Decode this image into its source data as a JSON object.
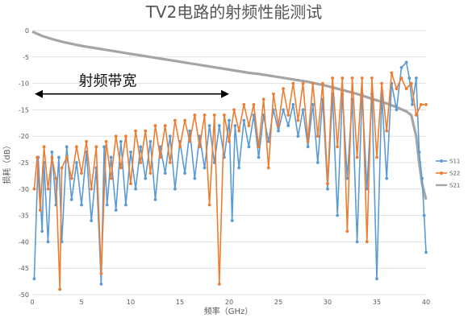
{
  "chart_data": {
    "type": "line",
    "title": "TV2电路的射频性能测试",
    "xlabel": "频率（GHz）",
    "ylabel": "损耗（dB）",
    "xlim": [
      0,
      40
    ],
    "ylim": [
      -50,
      0
    ],
    "xticks": [
      0,
      5,
      10,
      15,
      20,
      25,
      30,
      35,
      40
    ],
    "yticks": [
      0,
      -5,
      -10,
      -15,
      -20,
      -25,
      -30,
      -35,
      -40,
      -45,
      -50
    ],
    "grid": "horizontal",
    "legend_position": "right",
    "annotation": {
      "text": "射频带宽",
      "x_range": [
        0,
        20
      ],
      "y": -12
    },
    "series": [
      {
        "name": "S11",
        "color": "#5B9BD5",
        "marker": true,
        "x": [
          0.2,
          0.6,
          1.0,
          1.2,
          1.6,
          2.0,
          2.4,
          2.7,
          3.0,
          3.5,
          4.0,
          4.5,
          5.0,
          5.5,
          6.0,
          6.5,
          7.0,
          7.3,
          7.6,
          8.0,
          8.5,
          9.0,
          9.5,
          10.0,
          10.5,
          11.0,
          11.5,
          12.0,
          12.5,
          13.0,
          13.5,
          14.0,
          14.5,
          15.0,
          15.5,
          16.0,
          16.5,
          17.0,
          17.5,
          18.0,
          18.5,
          19.0,
          19.5,
          20.0,
          20.3,
          20.6,
          21.0,
          21.5,
          22.0,
          22.5,
          23.0,
          23.5,
          24.0,
          24.5,
          25.0,
          25.5,
          26.0,
          26.5,
          27.0,
          27.5,
          28.0,
          28.5,
          29.0,
          29.5,
          30.0,
          30.5,
          31.0,
          31.5,
          32.0,
          32.5,
          33.0,
          33.5,
          34.0,
          34.5,
          35.0,
          35.5,
          36.0,
          36.5,
          37.0,
          37.5,
          38.0,
          38.3,
          38.6,
          39.0,
          39.3,
          39.6,
          39.8,
          40.0
        ],
        "y": [
          -47,
          -24,
          -38,
          -25,
          -40,
          -23,
          -33,
          -24,
          -40,
          -22,
          -32,
          -25,
          -33,
          -23,
          -36,
          -26,
          -48,
          -22,
          -33,
          -24,
          -34,
          -21,
          -33,
          -23,
          -30,
          -22,
          -28,
          -21,
          -32,
          -22,
          -27,
          -20,
          -30,
          -21,
          -27,
          -19,
          -28,
          -20,
          -26,
          -18,
          -25,
          -18,
          -24,
          -17,
          -36,
          -18,
          -26,
          -17,
          -22,
          -16,
          -24,
          -16,
          -21,
          -15,
          -19,
          -15,
          -18,
          -14,
          -20,
          -15,
          -22,
          -14,
          -25,
          -13,
          -30,
          -12,
          -35,
          -12,
          -28,
          -13,
          -40,
          -12,
          -30,
          -12,
          -47,
          -12,
          -28,
          -10,
          -15,
          -7,
          -6,
          -9,
          -14,
          -9,
          -23,
          -28,
          -35,
          -42
        ]
      },
      {
        "name": "S22",
        "color": "#ED7D31",
        "marker": true,
        "x": [
          0.2,
          0.5,
          0.8,
          1.2,
          1.6,
          2.0,
          2.4,
          2.8,
          3.0,
          3.5,
          4.0,
          4.5,
          5.0,
          5.5,
          6.0,
          6.5,
          7.0,
          7.5,
          8.0,
          8.5,
          9.0,
          9.5,
          10.0,
          10.5,
          11.0,
          11.5,
          12.0,
          12.5,
          13.0,
          13.5,
          14.0,
          14.5,
          15.0,
          15.5,
          16.0,
          16.5,
          17.0,
          17.5,
          18.0,
          18.5,
          19.0,
          19.5,
          20.0,
          20.5,
          21.0,
          21.5,
          22.0,
          22.5,
          23.0,
          23.5,
          24.0,
          24.5,
          25.0,
          25.5,
          26.0,
          26.5,
          27.0,
          27.5,
          28.0,
          28.5,
          29.0,
          29.5,
          30.0,
          30.5,
          31.0,
          31.5,
          32.0,
          32.5,
          33.0,
          33.5,
          34.0,
          34.5,
          35.0,
          35.5,
          36.0,
          36.5,
          37.0,
          37.5,
          38.0,
          38.5,
          39.0,
          39.5,
          40.0
        ],
        "y": [
          -30,
          -24,
          -34,
          -22,
          -30,
          -24,
          -28,
          -49,
          -26,
          -24,
          -28,
          -22,
          -27,
          -21,
          -30,
          -22,
          -46,
          -21,
          -28,
          -20,
          -26,
          -20,
          -29,
          -19,
          -25,
          -19,
          -27,
          -18,
          -24,
          -18,
          -25,
          -17,
          -22,
          -17,
          -21,
          -16,
          -22,
          -16,
          -33,
          -16,
          -48,
          -16,
          -21,
          -15,
          -19,
          -14,
          -18,
          -14,
          -22,
          -13,
          -26,
          -12,
          -18,
          -11,
          -16,
          -10,
          -17,
          -10,
          -21,
          -10,
          -20,
          -10,
          -29,
          -9,
          -22,
          -9,
          -38,
          -9,
          -24,
          -9,
          -40,
          -9,
          -24,
          -10,
          -19,
          -8,
          -11,
          -9,
          -11,
          -10,
          -16,
          -14,
          -14
        ]
      },
      {
        "name": "S21",
        "color": "#A5A5A5",
        "marker": false,
        "x": [
          0,
          1,
          2,
          3,
          4,
          5,
          6,
          7,
          8,
          9,
          10,
          11,
          12,
          13,
          14,
          15,
          16,
          17,
          18,
          19,
          20,
          21,
          22,
          23,
          24,
          25,
          26,
          27,
          28,
          29,
          30,
          31,
          32,
          33,
          34,
          35,
          36,
          37,
          38,
          38.5,
          39,
          39.3,
          39.6,
          40
        ],
        "y": [
          -0.2,
          -1.0,
          -1.6,
          -2.1,
          -2.5,
          -2.9,
          -3.2,
          -3.5,
          -3.8,
          -4.1,
          -4.4,
          -4.7,
          -5.0,
          -5.3,
          -5.6,
          -5.9,
          -6.2,
          -6.5,
          -6.8,
          -7.1,
          -7.4,
          -7.7,
          -8.0,
          -8.2,
          -8.5,
          -8.8,
          -9.1,
          -9.4,
          -9.7,
          -10.1,
          -10.5,
          -11.0,
          -11.5,
          -12.0,
          -12.6,
          -13.2,
          -13.8,
          -14.5,
          -15.3,
          -16.0,
          -20.0,
          -25.0,
          -29.0,
          -32.0
        ]
      }
    ]
  }
}
